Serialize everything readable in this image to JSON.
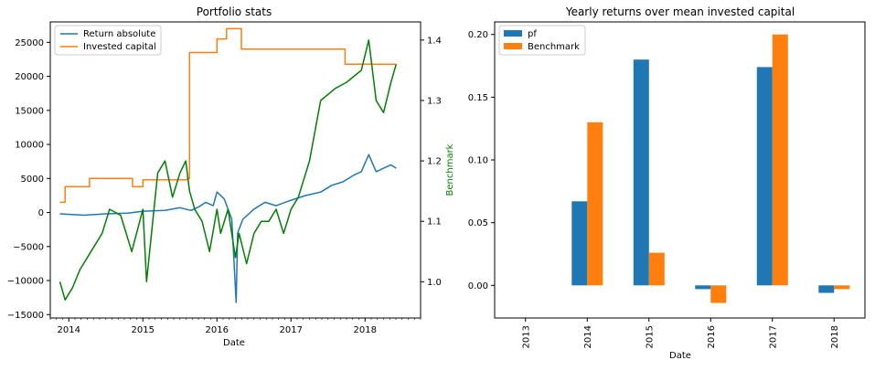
{
  "chart_data": [
    {
      "type": "line",
      "title": "Portfolio stats",
      "xlabel": "Date",
      "ylabel": "",
      "y2label": "Benchmark",
      "x_ticks": [
        "2014",
        "2015",
        "2016",
        "2017",
        "2018"
      ],
      "y_ticks": [
        "−15000",
        "−10000",
        "−5000",
        "0",
        "5000",
        "10000",
        "15000",
        "20000",
        "25000"
      ],
      "y2_ticks": [
        "1.0",
        "1.1",
        "1.2",
        "1.3",
        "1.4"
      ],
      "xlim": [
        2013.75,
        2018.75
      ],
      "ylim": [
        -15500,
        28000
      ],
      "y2lim": [
        0.94,
        1.43
      ],
      "legend": {
        "placement": "top-left",
        "entries": [
          "Return absolute",
          "Invested capital"
        ]
      },
      "series": [
        {
          "name": "Return absolute",
          "axis": "left",
          "color": "#1f77b4",
          "x": [
            2013.88,
            2014.2,
            2014.5,
            2014.8,
            2015.0,
            2015.3,
            2015.5,
            2015.65,
            2015.75,
            2015.85,
            2015.95,
            2016.0,
            2016.1,
            2016.2,
            2016.26,
            2016.28,
            2016.35,
            2016.5,
            2016.65,
            2016.8,
            2017.0,
            2017.2,
            2017.4,
            2017.55,
            2017.7,
            2017.85,
            2017.95,
            2018.05,
            2018.15,
            2018.25,
            2018.35,
            2018.42
          ],
          "y": [
            -200,
            -400,
            -200,
            -100,
            200,
            300,
            700,
            300,
            800,
            1500,
            1000,
            3000,
            2000,
            -1000,
            -13200,
            -3000,
            -1000,
            500,
            1500,
            1000,
            1800,
            2500,
            3000,
            4000,
            4500,
            5500,
            6000,
            8500,
            6000,
            6500,
            7000,
            6500
          ]
        },
        {
          "name": "Invested capital",
          "axis": "left",
          "color": "#ff7f0e",
          "x": [
            2013.88,
            2013.95,
            2013.95,
            2014.28,
            2014.28,
            2014.86,
            2014.86,
            2015.0,
            2015.0,
            2015.6,
            2015.6,
            2015.63,
            2015.63,
            2016.0,
            2016.0,
            2016.13,
            2016.13,
            2016.33,
            2016.33,
            2017.73,
            2017.73,
            2018.42
          ],
          "y": [
            1500,
            1500,
            3800,
            3800,
            5000,
            5000,
            3800,
            3800,
            4800,
            4800,
            5000,
            5000,
            23500,
            23500,
            25500,
            25500,
            27000,
            27000,
            24000,
            24000,
            21800,
            21800
          ]
        },
        {
          "name": "Benchmark",
          "axis": "right",
          "color": "#008000",
          "x": [
            2013.88,
            2013.95,
            2014.05,
            2014.15,
            2014.3,
            2014.45,
            2014.55,
            2014.7,
            2014.85,
            2015.0,
            2015.05,
            2015.15,
            2015.2,
            2015.3,
            2015.4,
            2015.5,
            2015.58,
            2015.63,
            2015.7,
            2015.8,
            2015.9,
            2016.0,
            2016.05,
            2016.15,
            2016.25,
            2016.3,
            2016.4,
            2016.5,
            2016.6,
            2016.7,
            2016.8,
            2016.9,
            2017.0,
            2017.1,
            2017.25,
            2017.4,
            2017.6,
            2017.75,
            2017.85,
            2017.95,
            2018.05,
            2018.15,
            2018.25,
            2018.35,
            2018.42
          ],
          "y": [
            1.0,
            0.97,
            0.99,
            1.02,
            1.05,
            1.08,
            1.12,
            1.11,
            1.05,
            1.12,
            1.0,
            1.12,
            1.18,
            1.2,
            1.14,
            1.18,
            1.2,
            1.15,
            1.12,
            1.1,
            1.05,
            1.12,
            1.08,
            1.12,
            1.04,
            1.08,
            1.03,
            1.08,
            1.1,
            1.1,
            1.12,
            1.08,
            1.12,
            1.14,
            1.2,
            1.3,
            1.32,
            1.33,
            1.34,
            1.35,
            1.4,
            1.3,
            1.28,
            1.33,
            1.36
          ]
        }
      ]
    },
    {
      "type": "bar",
      "title": "Yearly returns over mean invested capital",
      "xlabel": "Date",
      "ylabel": "",
      "categories": [
        "2013",
        "2014",
        "2015",
        "2016",
        "2017",
        "2018"
      ],
      "y_ticks": [
        "0.00",
        "0.05",
        "0.10",
        "0.15",
        "0.20"
      ],
      "ylim": [
        -0.026,
        0.21
      ],
      "legend": {
        "placement": "top-left",
        "entries": [
          "pf",
          "Benchmark"
        ]
      },
      "series": [
        {
          "name": "pf",
          "color": "#1f77b4",
          "values": [
            0,
            0.067,
            0.18,
            -0.003,
            0.174,
            -0.006
          ]
        },
        {
          "name": "Benchmark",
          "color": "#ff7f0e",
          "values": [
            0,
            0.13,
            0.026,
            -0.014,
            0.2,
            -0.003
          ]
        }
      ]
    }
  ]
}
